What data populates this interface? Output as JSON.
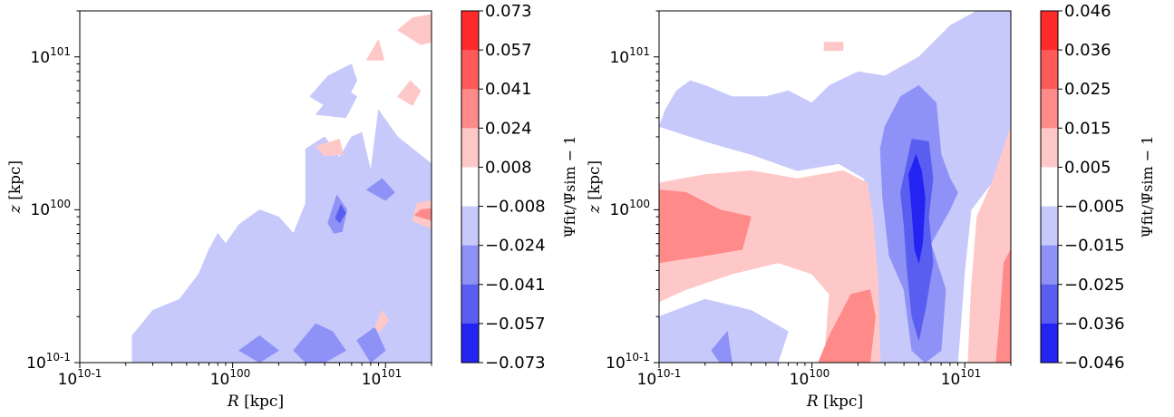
{
  "chart_data": [
    {
      "type": "heatmap",
      "subtype": "filled-contour",
      "xlabel_var": "R",
      "xlabel_unit": "[kpc]",
      "ylabel_var": "z",
      "ylabel_unit": "[kpc]",
      "xscale": "log",
      "yscale": "log",
      "xlim": [
        0.1,
        20
      ],
      "ylim": [
        0.1,
        20
      ],
      "x_tick_labels": [
        "10-1",
        "100",
        "101"
      ],
      "y_tick_labels": [
        "10-1",
        "100",
        "101"
      ],
      "colorbar_label": "Ψfit/Ψ̄sim − 1",
      "colorbar_levels": [
        "0.073",
        "0.057",
        "0.041",
        "0.024",
        "0.008",
        "−0.008",
        "−0.024",
        "−0.041",
        "−0.057",
        "−0.073"
      ],
      "colorbar_colors": [
        "#ff2a2a",
        "#ff5a5a",
        "#ff8a8a",
        "#ffc8c8",
        "#ffffff",
        "#c7c9fb",
        "#8e92f6",
        "#5a5ef0",
        "#2424f2"
      ],
      "regions": [
        {
          "level": -1,
          "points": [
            [
              0.22,
              0.1
            ],
            [
              0.22,
              0.15
            ],
            [
              0.3,
              0.22
            ],
            [
              0.45,
              0.26
            ],
            [
              0.6,
              0.38
            ],
            [
              0.7,
              0.55
            ],
            [
              0.8,
              0.7
            ],
            [
              0.9,
              0.6
            ],
            [
              1.1,
              0.8
            ],
            [
              1.5,
              1.0
            ],
            [
              2.0,
              0.9
            ],
            [
              2.5,
              0.7
            ],
            [
              3.0,
              1.1
            ],
            [
              3.0,
              2.5
            ],
            [
              4.0,
              3.0
            ],
            [
              5.0,
              2.2
            ],
            [
              6.0,
              3.0
            ],
            [
              7.0,
              3.2
            ],
            [
              8.0,
              1.8
            ],
            [
              9.0,
              4.5
            ],
            [
              12.0,
              3.0
            ],
            [
              20.0,
              2.0
            ],
            [
              20.0,
              0.1
            ]
          ]
        },
        {
          "level": -1,
          "points": [
            [
              3.2,
              5.5
            ],
            [
              4.2,
              7.5
            ],
            [
              6.0,
              9.0
            ],
            [
              6.5,
              7.0
            ],
            [
              5.0,
              4.2
            ]
          ]
        },
        {
          "level": -1,
          "points": [
            [
              3.5,
              4.2
            ],
            [
              5.0,
              6.5
            ],
            [
              6.5,
              5.5
            ],
            [
              5.5,
              4.0
            ]
          ]
        },
        {
          "level": -2,
          "points": [
            [
              4.2,
              0.82
            ],
            [
              4.8,
              1.25
            ],
            [
              5.6,
              1.0
            ],
            [
              5.2,
              0.72
            ],
            [
              4.6,
              0.7
            ]
          ]
        },
        {
          "level": -2,
          "points": [
            [
              7.5,
              1.35
            ],
            [
              9.5,
              1.6
            ],
            [
              11.5,
              1.3
            ],
            [
              10.0,
              1.15
            ]
          ]
        },
        {
          "level": -2,
          "points": [
            [
              2.5,
              0.12
            ],
            [
              3.5,
              0.18
            ],
            [
              4.5,
              0.16
            ],
            [
              5.5,
              0.12
            ],
            [
              4.0,
              0.1
            ],
            [
              3.0,
              0.1
            ]
          ]
        },
        {
          "level": -2,
          "points": [
            [
              6.5,
              0.14
            ],
            [
              8.5,
              0.17
            ],
            [
              10.0,
              0.12
            ],
            [
              8.0,
              0.1
            ]
          ]
        },
        {
          "level": -2,
          "points": [
            [
              1.1,
              0.12
            ],
            [
              1.5,
              0.15
            ],
            [
              2.0,
              0.12
            ],
            [
              1.5,
              0.1
            ]
          ]
        },
        {
          "level": -3,
          "points": [
            [
              4.7,
              0.88
            ],
            [
              5.1,
              1.08
            ],
            [
              5.5,
              0.95
            ],
            [
              5.0,
              0.82
            ]
          ]
        },
        {
          "level": 1,
          "points": [
            [
              15.0,
              0.85
            ],
            [
              20.0,
              0.75
            ],
            [
              20.0,
              1.15
            ],
            [
              16.0,
              1.1
            ]
          ]
        },
        {
          "level": 1,
          "points": [
            [
              12.0,
              5.5
            ],
            [
              15.0,
              4.8
            ],
            [
              17.0,
              6.0
            ],
            [
              14.5,
              7.0
            ]
          ]
        },
        {
          "level": 1,
          "points": [
            [
              12.0,
              15.0
            ],
            [
              17.0,
              12.0
            ],
            [
              20.0,
              12.5
            ],
            [
              20.0,
              19.0
            ],
            [
              15.0,
              18.0
            ]
          ]
        },
        {
          "level": 1,
          "points": [
            [
              3.5,
              2.6
            ],
            [
              5.0,
              2.9
            ],
            [
              5.3,
              2.3
            ],
            [
              4.0,
              2.25
            ]
          ]
        },
        {
          "level": 1,
          "points": [
            [
              7.5,
              9.5
            ],
            [
              9.0,
              13.0
            ],
            [
              9.8,
              9.5
            ]
          ]
        },
        {
          "level": 1,
          "points": [
            [
              8.5,
              0.17
            ],
            [
              9.5,
              0.22
            ],
            [
              10.5,
              0.19
            ],
            [
              9.2,
              0.16
            ]
          ]
        },
        {
          "level": 2,
          "points": [
            [
              15.5,
              0.92
            ],
            [
              20.0,
              0.85
            ],
            [
              20.0,
              1.02
            ],
            [
              17.0,
              1.0
            ]
          ]
        }
      ]
    },
    {
      "type": "heatmap",
      "subtype": "filled-contour",
      "xlabel_var": "R",
      "xlabel_unit": "[kpc]",
      "ylabel_var": "z",
      "ylabel_unit": "[kpc]",
      "xscale": "log",
      "yscale": "log",
      "xlim": [
        0.1,
        20
      ],
      "ylim": [
        0.1,
        20
      ],
      "x_tick_labels": [
        "10-1",
        "100",
        "101"
      ],
      "y_tick_labels": [
        "10-1",
        "100",
        "101"
      ],
      "colorbar_label": "Ψfit/Ψ̄sim − 1",
      "colorbar_levels": [
        "0.046",
        "0.036",
        "0.025",
        "0.015",
        "0.005",
        "−0.005",
        "−0.015",
        "−0.025",
        "−0.036",
        "−0.046"
      ],
      "colorbar_colors": [
        "#ff2a2a",
        "#ff5a5a",
        "#ff8a8a",
        "#ffc8c8",
        "#ffffff",
        "#c7c9fb",
        "#8e92f6",
        "#5a5ef0",
        "#2424f2"
      ],
      "regions": [
        {
          "level": -1,
          "points": [
            [
              0.1,
              3.5
            ],
            [
              0.11,
              4.5
            ],
            [
              0.13,
              6.0
            ],
            [
              0.16,
              7.0
            ],
            [
              0.2,
              6.5
            ],
            [
              0.3,
              5.5
            ],
            [
              0.5,
              5.5
            ],
            [
              0.7,
              6.0
            ],
            [
              1.0,
              5.0
            ],
            [
              1.3,
              6.5
            ],
            [
              2.0,
              8.0
            ],
            [
              3.0,
              7.5
            ],
            [
              5.0,
              10.0
            ],
            [
              8.0,
              16.0
            ],
            [
              12.0,
              20.0
            ],
            [
              20.0,
              20.0
            ],
            [
              20.0,
              3.0
            ],
            [
              15.0,
              1.5
            ],
            [
              11.0,
              1.0
            ],
            [
              10.0,
              0.4
            ],
            [
              9.0,
              0.1
            ],
            [
              2.8,
              0.1
            ],
            [
              2.6,
              0.3
            ],
            [
              2.5,
              0.9
            ],
            [
              2.2,
              1.6
            ],
            [
              1.5,
              2.0
            ],
            [
              0.8,
              1.8
            ],
            [
              0.4,
              2.3
            ],
            [
              0.2,
              2.8
            ]
          ]
        },
        {
          "level": -1,
          "points": [
            [
              0.1,
              0.1
            ],
            [
              0.1,
              0.2
            ],
            [
              0.2,
              0.26
            ],
            [
              0.4,
              0.22
            ],
            [
              0.7,
              0.16
            ],
            [
              0.6,
              0.1
            ]
          ]
        },
        {
          "level": -2,
          "points": [
            [
              3.0,
              3.5
            ],
            [
              3.8,
              5.5
            ],
            [
              5.0,
              6.5
            ],
            [
              6.5,
              5.0
            ],
            [
              7.0,
              2.3
            ],
            [
              8.0,
              1.6
            ],
            [
              9.0,
              1.3
            ],
            [
              8.0,
              1.0
            ],
            [
              6.0,
              0.6
            ],
            [
              7.5,
              0.3
            ],
            [
              7.0,
              0.12
            ],
            [
              5.5,
              0.1
            ],
            [
              4.5,
              0.12
            ],
            [
              4.0,
              0.3
            ],
            [
              3.2,
              0.5
            ],
            [
              2.9,
              1.2
            ],
            [
              2.8,
              2.5
            ]
          ]
        },
        {
          "level": -2,
          "points": [
            [
              0.22,
              0.12
            ],
            [
              0.28,
              0.16
            ],
            [
              0.3,
              0.1
            ],
            [
              0.25,
              0.1
            ]
          ]
        },
        {
          "level": -3,
          "points": [
            [
              3.8,
              1.3
            ],
            [
              4.5,
              2.9
            ],
            [
              5.8,
              2.8
            ],
            [
              6.2,
              1.6
            ],
            [
              5.8,
              0.9
            ],
            [
              6.2,
              0.45
            ],
            [
              5.5,
              0.22
            ],
            [
              5.0,
              0.14
            ],
            [
              4.5,
              0.2
            ],
            [
              4.2,
              0.4
            ],
            [
              4.0,
              0.8
            ]
          ]
        },
        {
          "level": -4,
          "points": [
            [
              4.3,
              1.7
            ],
            [
              4.8,
              2.3
            ],
            [
              5.2,
              1.8
            ],
            [
              5.5,
              1.2
            ],
            [
              5.3,
              0.6
            ],
            [
              5.0,
              0.45
            ],
            [
              4.7,
              0.55
            ],
            [
              4.5,
              1.0
            ]
          ]
        },
        {
          "level": 1,
          "points": [
            [
              0.1,
              0.25
            ],
            [
              0.15,
              0.3
            ],
            [
              0.3,
              0.38
            ],
            [
              0.6,
              0.45
            ],
            [
              1.0,
              0.38
            ],
            [
              1.3,
              0.28
            ],
            [
              1.2,
              0.1
            ],
            [
              2.8,
              0.1
            ],
            [
              2.7,
              0.35
            ],
            [
              2.5,
              0.9
            ],
            [
              2.3,
              1.5
            ],
            [
              1.6,
              1.8
            ],
            [
              0.8,
              1.6
            ],
            [
              0.4,
              1.8
            ],
            [
              0.2,
              1.7
            ],
            [
              0.1,
              1.5
            ]
          ]
        },
        {
          "level": 1,
          "points": [
            [
              10.5,
              0.1
            ],
            [
              20.0,
              0.1
            ],
            [
              20.0,
              3.5
            ],
            [
              15.0,
              1.5
            ],
            [
              12.0,
              0.9
            ],
            [
              11.0,
              0.3
            ]
          ]
        },
        {
          "level": 1,
          "points": [
            [
              1.2,
              11.0
            ],
            [
              1.6,
              11.0
            ],
            [
              1.6,
              12.5
            ],
            [
              1.2,
              12.5
            ]
          ]
        },
        {
          "level": 2,
          "points": [
            [
              0.1,
              0.45
            ],
            [
              0.1,
              1.35
            ],
            [
              0.15,
              1.3
            ],
            [
              0.25,
              1.0
            ],
            [
              0.4,
              0.9
            ],
            [
              0.35,
              0.55
            ],
            [
              0.2,
              0.5
            ]
          ]
        },
        {
          "level": 2,
          "points": [
            [
              1.1,
              0.1
            ],
            [
              2.4,
              0.1
            ],
            [
              2.6,
              0.2
            ],
            [
              2.4,
              0.3
            ],
            [
              1.8,
              0.28
            ],
            [
              1.3,
              0.15
            ]
          ]
        },
        {
          "level": 2,
          "points": [
            [
              16.0,
              0.1
            ],
            [
              20.0,
              0.1
            ],
            [
              20.0,
              0.55
            ],
            [
              18.0,
              0.45
            ],
            [
              17.0,
              0.2
            ]
          ]
        }
      ]
    }
  ]
}
